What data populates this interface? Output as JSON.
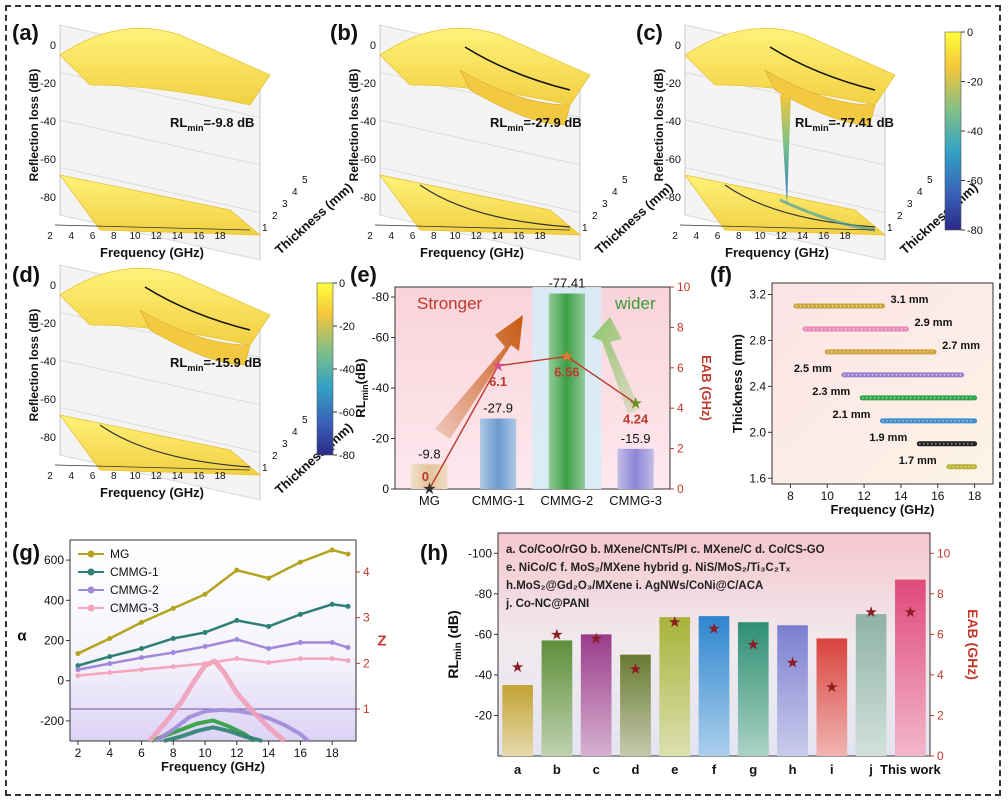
{
  "panel_labels": [
    "(a)",
    "(b)",
    "(c)",
    "(d)",
    "(e)",
    "(f)",
    "(g)",
    "(h)"
  ],
  "colorbar": {
    "ticks": [
      "0",
      "-20",
      "-40",
      "-60",
      "-80"
    ]
  },
  "chart_data": [
    {
      "id": "a",
      "type": "surface3d",
      "annotation": {
        "pre": "RL",
        "sub": "min",
        "post": "=-9.8 dB"
      },
      "xlabel": "Frequency (GHz)",
      "ylabel": "Reflection loss (dB)",
      "zlabel": "Thickness (mm)",
      "x_ticks": [
        "2",
        "4",
        "6",
        "8",
        "10",
        "12",
        "14",
        "16",
        "18"
      ],
      "y_ticks": [
        "0",
        "-20",
        "-40",
        "-60",
        "-80"
      ],
      "z_ticks": [
        "1",
        "2",
        "3",
        "4",
        "5"
      ],
      "rl_min": -9.8
    },
    {
      "id": "b",
      "type": "surface3d",
      "annotation": {
        "pre": "RL",
        "sub": "min",
        "post": "=-27.9 dB"
      },
      "xlabel": "Frequency (GHz)",
      "ylabel": "Reflection loss (dB)",
      "zlabel": "Thickness (mm)",
      "x_ticks": [
        "2",
        "4",
        "6",
        "8",
        "10",
        "12",
        "14",
        "16",
        "18"
      ],
      "y_ticks": [
        "0",
        "-20",
        "-40",
        "-60",
        "-80"
      ],
      "z_ticks": [
        "1",
        "2",
        "3",
        "4",
        "5"
      ],
      "rl_min": -27.9
    },
    {
      "id": "c",
      "type": "surface3d",
      "annotation": {
        "pre": "RL",
        "sub": "min",
        "post": "=-77.41 dB"
      },
      "xlabel": "Frequency (GHz)",
      "ylabel": "Reflection loss (dB)",
      "zlabel": "Thickness (mm)",
      "x_ticks": [
        "2",
        "4",
        "6",
        "8",
        "10",
        "12",
        "14",
        "16",
        "18"
      ],
      "y_ticks": [
        "0",
        "-20",
        "-40",
        "-60",
        "-80"
      ],
      "z_ticks": [
        "1",
        "2",
        "3",
        "4",
        "5"
      ],
      "rl_min": -77.41
    },
    {
      "id": "d",
      "type": "surface3d",
      "annotation": {
        "pre": "RL",
        "sub": "min",
        "post": "=-15.9 dB"
      },
      "xlabel": "Frequency (GHz)",
      "ylabel": "Reflection loss (dB)",
      "zlabel": "Thickness (mm)",
      "x_ticks": [
        "2",
        "4",
        "6",
        "8",
        "10",
        "12",
        "14",
        "16",
        "18"
      ],
      "y_ticks": [
        "0",
        "-20",
        "-40",
        "-60",
        "-80"
      ],
      "z_ticks": [
        "1",
        "2",
        "3",
        "4",
        "5"
      ],
      "rl_min": -15.9
    },
    {
      "id": "e",
      "type": "bar",
      "categories": [
        "MG",
        "CMMG-1",
        "CMMG-2",
        "CMMG-3"
      ],
      "rl_values": [
        -9.8,
        -27.9,
        -77.41,
        -15.9
      ],
      "rl_labels": [
        "-9.8",
        "-27.9",
        "-77.41",
        "-15.9"
      ],
      "eab_values": [
        0,
        6.1,
        6.56,
        4.24
      ],
      "eab_labels": [
        "0",
        "6.1",
        "6.56",
        "4.24"
      ],
      "ylabel_left": {
        "pre": "RL",
        "sub": "min",
        "post": "(dB)"
      },
      "ylabel_right": "EAB (GHz)",
      "ylim_left": [
        0,
        -80
      ],
      "ylim_right": [
        0,
        10
      ],
      "left_ticks": [
        "0",
        "-20",
        "-40",
        "-60",
        "-80"
      ],
      "right_ticks": [
        "0",
        "2",
        "4",
        "6",
        "8",
        "10"
      ],
      "text_stronger": "Stronger",
      "text_wider": "wider",
      "bar_colors": [
        "#e3c49a",
        "#6a9bd0",
        "#3c9f45",
        "#8f86d6"
      ]
    },
    {
      "id": "f",
      "type": "line",
      "xlabel": "Frequency (GHz)",
      "ylabel": "Thickness (mm)",
      "xlim": [
        7,
        19
      ],
      "ylim": [
        1.55,
        3.3
      ],
      "x_ticks": [
        "8",
        "10",
        "12",
        "14",
        "16",
        "18"
      ],
      "y_ticks": [
        "1.6",
        "2.0",
        "2.4",
        "2.8",
        "3.2"
      ],
      "series": [
        {
          "name": "3.1 mm",
          "y": 3.1,
          "x": [
            8.3,
            13.0
          ],
          "color": "#c9a53b"
        },
        {
          "name": "2.9 mm",
          "y": 2.9,
          "x": [
            8.8,
            14.3
          ],
          "color": "#e68ab9"
        },
        {
          "name": "2.7 mm",
          "y": 2.7,
          "x": [
            10.0,
            15.8
          ],
          "color": "#d0a23a"
        },
        {
          "name": "2.5 mm",
          "y": 2.5,
          "x": [
            10.9,
            17.3
          ],
          "color": "#9b82d0"
        },
        {
          "name": "2.3 mm",
          "y": 2.3,
          "x": [
            11.9,
            18.0
          ],
          "color": "#2ea34a"
        },
        {
          "name": "2.1 mm",
          "y": 2.1,
          "x": [
            13.0,
            18.0
          ],
          "color": "#3d8fcf"
        },
        {
          "name": "1.9 mm",
          "y": 1.9,
          "x": [
            15.0,
            18.0
          ],
          "color": "#222222"
        },
        {
          "name": "1.7 mm",
          "y": 1.7,
          "x": [
            16.6,
            18.0
          ],
          "color": "#b6b23a"
        }
      ]
    },
    {
      "id": "g",
      "type": "line",
      "xlabel": "Frequency (GHz)",
      "ylabel_left": "α",
      "ylabel_right": "Z",
      "xlim": [
        1.5,
        19.5
      ],
      "ylim_left": [
        -300,
        700
      ],
      "ylim_right": [
        0.3,
        4.7
      ],
      "x_ticks": [
        "2",
        "4",
        "6",
        "8",
        "10",
        "12",
        "14",
        "16",
        "18"
      ],
      "left_ticks": [
        "-200",
        "0",
        "200",
        "400",
        "600"
      ],
      "right_ticks": [
        "1",
        "2",
        "3",
        "4"
      ],
      "z_reference": 1,
      "series": [
        {
          "name": "MG",
          "color": "#b3a31f",
          "x": [
            2,
            4,
            6,
            8,
            10,
            12,
            14,
            16,
            18,
            19
          ],
          "y": [
            135,
            210,
            290,
            360,
            430,
            550,
            510,
            590,
            650,
            630
          ]
        },
        {
          "name": "CMMG-1",
          "color": "#2e7f76",
          "x": [
            2,
            4,
            6,
            8,
            10,
            12,
            14,
            16,
            18,
            19
          ],
          "y": [
            75,
            120,
            160,
            210,
            240,
            300,
            270,
            330,
            380,
            370
          ]
        },
        {
          "name": "CMMG-2",
          "color": "#a08ad8",
          "x": [
            2,
            4,
            6,
            8,
            10,
            12,
            14,
            16,
            18,
            19
          ],
          "y": [
            55,
            85,
            115,
            140,
            170,
            205,
            160,
            190,
            190,
            165
          ]
        },
        {
          "name": "CMMG-3",
          "color": "#f4a6bd",
          "x": [
            2,
            4,
            6,
            8,
            10,
            12,
            14,
            16,
            18,
            19
          ],
          "y": [
            25,
            40,
            55,
            70,
            85,
            110,
            90,
            110,
            110,
            100
          ]
        }
      ],
      "z_series": [
        {
          "name": "MG",
          "color": "#2e9f3a",
          "x": [
            6.6,
            7.5,
            8.5,
            9.5,
            10.5,
            11.5,
            12.5,
            13.1
          ],
          "y": [
            0.3,
            0.42,
            0.55,
            0.68,
            0.75,
            0.62,
            0.45,
            0.3
          ]
        },
        {
          "name": "CMMG-1",
          "color": "#2e7f76",
          "x": [
            7.4,
            8.5,
            9.5,
            10.5,
            11.5,
            12.5,
            13.6
          ],
          "y": [
            0.3,
            0.4,
            0.52,
            0.6,
            0.52,
            0.4,
            0.3
          ]
        },
        {
          "name": "CMMG-2",
          "color": "#a08ad8",
          "x": [
            6.9,
            8,
            9,
            10,
            11,
            12,
            13,
            14,
            15,
            16,
            16.5
          ],
          "y": [
            0.3,
            0.55,
            0.82,
            0.95,
            0.98,
            0.96,
            0.9,
            0.8,
            0.65,
            0.45,
            0.3
          ]
        },
        {
          "name": "CMMG-3",
          "color": "#f0a0b8",
          "x": [
            6.5,
            7.5,
            8.5,
            9.3,
            10,
            10.6,
            11.2,
            12,
            13,
            14,
            15
          ],
          "y": [
            0.3,
            0.7,
            1.15,
            1.6,
            1.95,
            2.05,
            1.8,
            1.35,
            0.95,
            0.6,
            0.3
          ]
        }
      ]
    },
    {
      "id": "h",
      "type": "bar",
      "categories": [
        "a",
        "b",
        "c",
        "d",
        "e",
        "f",
        "g",
        "h",
        "i",
        "j",
        "This work"
      ],
      "rl_values": [
        -35,
        -57,
        -60,
        -50,
        -68.5,
        -69,
        -66,
        -64.5,
        -58,
        -70,
        -87
      ],
      "eab_values": [
        4.4,
        6.0,
        5.8,
        4.3,
        6.6,
        6.3,
        5.5,
        4.6,
        3.4,
        7.1,
        7.1
      ],
      "ylabel_left": {
        "pre": "RL",
        "sub": "min",
        "post": " (dB)"
      },
      "ylabel_right": "EAB (GHz)",
      "ylim_left": [
        0,
        -110
      ],
      "ylim_right": [
        0,
        11
      ],
      "left_ticks": [
        "-20",
        "-40",
        "-60",
        "-80",
        "-100"
      ],
      "right_ticks": [
        "0",
        "2",
        "4",
        "6",
        "8",
        "10"
      ],
      "legend_lines": [
        "a. Co/CoO/rGO b. MXene/CNTs/PI  c. MXene/C    d. Co/CS-GO",
        "e. NiCo/C    f. MoS₂/MXene hybrid    g. NiS/MoS₂/Ti₃C₂Tₓ",
        "h.MoS₂@Gd₂O₃/MXene  i. AgNWs/CoNi@C/ACA",
        "j. Co-NC@PANI"
      ],
      "bar_colors": [
        "#c2a233",
        "#5f8f3a",
        "#9a3c8b",
        "#6a7a32",
        "#a7b33a",
        "#2e86cf",
        "#2e8f72",
        "#7c7fd0",
        "#d9443e",
        "#8fb3a6",
        "#e04a7a"
      ]
    }
  ]
}
